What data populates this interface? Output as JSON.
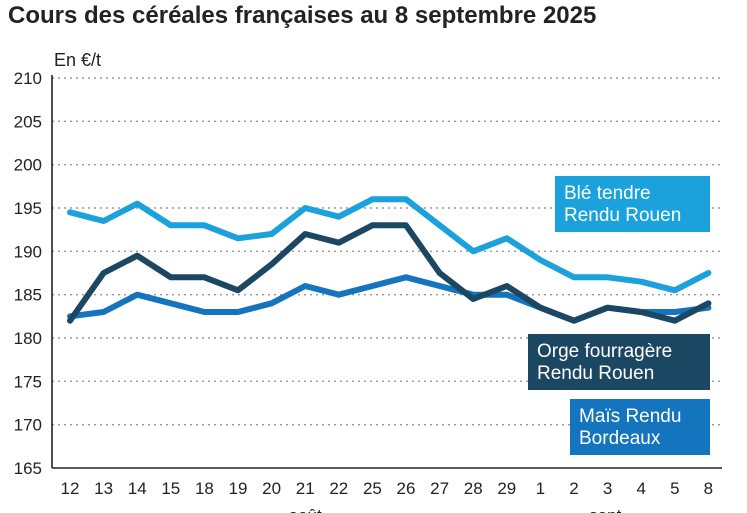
{
  "chart_data": {
    "type": "line",
    "title": "Cours des céréales françaises au 8 septembre 2025",
    "ylabel": "En €/t",
    "ylim": [
      165,
      210
    ],
    "yticks": [
      165,
      170,
      175,
      180,
      185,
      190,
      195,
      200,
      205,
      210
    ],
    "grid": true,
    "categories": [
      "12",
      "13",
      "14",
      "15",
      "18",
      "19",
      "20",
      "21",
      "22",
      "25",
      "26",
      "27",
      "28",
      "29",
      "1",
      "2",
      "3",
      "4",
      "5",
      "8"
    ],
    "month_labels": [
      {
        "label": "août",
        "category_index": 7
      },
      {
        "label": "sept.",
        "category_index": 16
      }
    ],
    "series": [
      {
        "name": "Blé tendre Rendu Rouen",
        "legend_lines": [
          "Blé tendre",
          "Rendu Rouen"
        ],
        "color": "#1BA1DC",
        "values": [
          194.5,
          193.5,
          195.5,
          193,
          193,
          191.5,
          192,
          195,
          194,
          196,
          196,
          193,
          190,
          191.5,
          189,
          187,
          187,
          186.5,
          185.5,
          187.5
        ]
      },
      {
        "name": "Orge fourragère Rendu Rouen",
        "legend_lines": [
          "Orge fourragère",
          "Rendu Rouen"
        ],
        "color": "#1C4763",
        "values": [
          182,
          187.5,
          189.5,
          187,
          187,
          185.5,
          188.5,
          192,
          191,
          193,
          193,
          187.5,
          184.5,
          186,
          183.5,
          182,
          183.5,
          183,
          182,
          184
        ]
      },
      {
        "name": "Maïs Rendu Bordeaux",
        "legend_lines": [
          "Maïs Rendu",
          "Bordeaux"
        ],
        "color": "#1474BE",
        "values": [
          182.5,
          183,
          185,
          184,
          183,
          183,
          184,
          186,
          185,
          186,
          187,
          186,
          185,
          185,
          183.5,
          182,
          183.5,
          183,
          183,
          183.5
        ]
      }
    ]
  }
}
